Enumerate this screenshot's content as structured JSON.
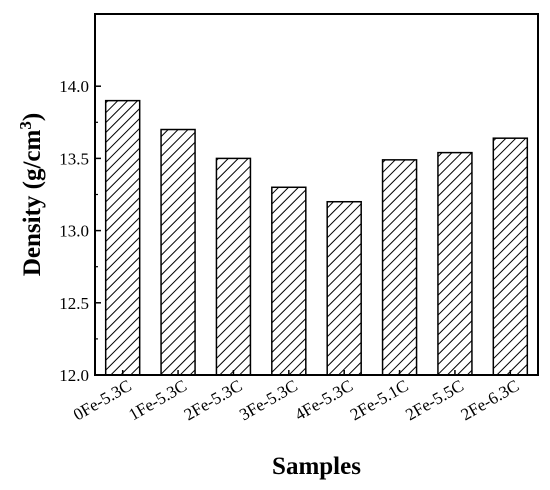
{
  "chart_data": {
    "type": "bar",
    "title": "",
    "xlabel": "Samples",
    "ylabel": "Density (g/cm",
    "ylabel_superscript": "3",
    "ylabel_close": ")",
    "categories": [
      "0Fe-5.3C",
      "1Fe-5.3C",
      "2Fe-5.3C",
      "3Fe-5.3C",
      "4Fe-5.3C",
      "2Fe-5.1C",
      "2Fe-5.5C",
      "2Fe-6.3C"
    ],
    "values": [
      13.9,
      13.7,
      13.5,
      13.3,
      13.2,
      13.49,
      13.54,
      13.64
    ],
    "ylim": [
      12.0,
      14.5
    ],
    "yticks": [
      "12.0",
      "12.5",
      "13.0",
      "13.5",
      "14.0"
    ],
    "ytick_values": [
      12.0,
      12.5,
      13.0,
      13.5,
      14.0
    ],
    "bar_pattern": "diagonal-hatch",
    "bar_color": "#000000",
    "grid": false,
    "legend": "none"
  }
}
